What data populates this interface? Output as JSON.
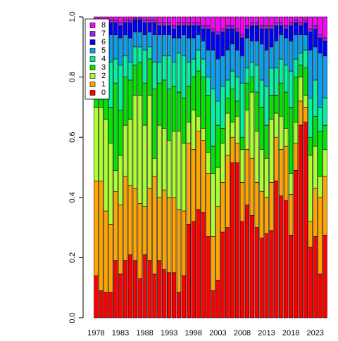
{
  "chart_data": {
    "type": "stacked_bar",
    "categories": [
      "1978",
      null,
      null,
      null,
      null,
      "1983",
      null,
      null,
      null,
      null,
      "1988",
      null,
      null,
      null,
      null,
      "1993",
      null,
      null,
      null,
      null,
      "1998",
      null,
      null,
      null,
      null,
      "2003",
      null,
      null,
      null,
      null,
      "2008",
      null,
      null,
      null,
      null,
      "2013",
      null,
      null,
      null,
      null,
      "2018",
      null,
      null,
      null,
      null,
      "2023",
      null,
      null
    ],
    "series": [
      {
        "name": "0",
        "color": "#FF0000",
        "values": [
          0.14,
          0.09,
          0.085,
          0.085,
          0.19,
          0.145,
          0.19,
          0.21,
          0.19,
          0.13,
          0.21,
          0.19,
          0.145,
          0.19,
          0.16,
          0.15,
          0.15,
          0.085,
          0.14,
          0.31,
          0.32,
          0.36,
          0.35,
          0.27,
          0.09,
          0.125,
          0.285,
          0.3,
          0.515,
          0.515,
          0.32,
          0.375,
          0.34,
          0.3,
          0.265,
          0.28,
          0.29,
          0.455,
          0.405,
          0.39,
          0.275,
          0.49,
          0.64,
          0.65,
          0.235,
          0.27,
          0.145,
          0.275
        ]
      },
      {
        "name": "1",
        "color": "#FFA500",
        "values": [
          0.315,
          0.365,
          0.27,
          0.225,
          0.23,
          0.23,
          0.28,
          0.23,
          0.24,
          0.25,
          0.16,
          0.24,
          0.325,
          0.21,
          0.265,
          0.25,
          0.25,
          0.275,
          0.215,
          0.27,
          0.24,
          0.26,
          0.24,
          0.21,
          0.18,
          0.245,
          0.165,
          0.24,
          0.085,
          0.065,
          0.13,
          0.185,
          0.19,
          0.15,
          0.155,
          0.12,
          0.16,
          0.145,
          0.155,
          0.18,
          0.135,
          0.09,
          0.08,
          0.05,
          0.085,
          0.16,
          0.255,
          0.195
        ]
      },
      {
        "name": "2",
        "color": "#ADFF2F",
        "values": [
          0.245,
          0.245,
          0.305,
          0.27,
          0.07,
          0.165,
          0.17,
          0.22,
          0.31,
          0.36,
          0.27,
          0.31,
          0.06,
          0.24,
          0.205,
          0.19,
          0.22,
          0.26,
          0.225,
          0.07,
          0.13,
          0.05,
          0.04,
          0.07,
          0.21,
          0.13,
          0.13,
          0.14,
          0.05,
          0.09,
          0.11,
          0.13,
          0.22,
          0.17,
          0.14,
          0.13,
          0.21,
          0.08,
          0.11,
          0.06,
          0.07,
          0.07,
          0.08,
          0.04,
          0.22,
          0.14,
          0.07,
          0.09
        ]
      },
      {
        "name": "3",
        "color": "#00E600",
        "values": [
          0.04,
          0.09,
          0.13,
          0.12,
          0.29,
          0.15,
          0.16,
          0.13,
          0.1,
          0.11,
          0.14,
          0.12,
          0.23,
          0.14,
          0.16,
          0.17,
          0.15,
          0.13,
          0.15,
          0.12,
          0.11,
          0.15,
          0.17,
          0.19,
          0.09,
          0.14,
          0.05,
          0.05,
          0.11,
          0.05,
          0.04,
          0.09,
          0.05,
          0.13,
          0.14,
          0.11,
          0.08,
          0.06,
          0.11,
          0.12,
          0.22,
          0.15,
          0.04,
          0.09,
          0.06,
          0.1,
          0.15,
          0.08
        ]
      },
      {
        "name": "4",
        "color": "#00F5A0",
        "values": [
          0.12,
          0.07,
          0.11,
          0.15,
          0.08,
          0.15,
          0.07,
          0.06,
          0.06,
          0.05,
          0.11,
          0.04,
          0.09,
          0.07,
          0.08,
          0.11,
          0.08,
          0.13,
          0.14,
          0.08,
          0.06,
          0.07,
          0.06,
          0.06,
          0.19,
          0.08,
          0.14,
          0.06,
          0.06,
          0.08,
          0.18,
          0.05,
          0.05,
          0.09,
          0.09,
          0.13,
          0.09,
          0.09,
          0.08,
          0.09,
          0.12,
          0.06,
          0.04,
          0.06,
          0.13,
          0.12,
          0.08,
          0.09
        ]
      },
      {
        "name": "5",
        "color": "#0AA0F0",
        "values": [
          0.07,
          0.07,
          0.04,
          0.09,
          0.08,
          0.09,
          0.07,
          0.08,
          0.05,
          0.05,
          0.05,
          0.05,
          0.09,
          0.09,
          0.07,
          0.07,
          0.08,
          0.05,
          0.07,
          0.08,
          0.07,
          0.05,
          0.06,
          0.09,
          0.13,
          0.14,
          0.1,
          0.1,
          0.09,
          0.09,
          0.09,
          0.1,
          0.07,
          0.08,
          0.12,
          0.12,
          0.07,
          0.09,
          0.08,
          0.09,
          0.1,
          0.08,
          0.06,
          0.05,
          0.16,
          0.11,
          0.18,
          0.14
        ]
      },
      {
        "name": "6",
        "color": "#0000FF",
        "values": [
          0.04,
          0.05,
          0.04,
          0.04,
          0.04,
          0.04,
          0.04,
          0.05,
          0.04,
          0.04,
          0.04,
          0.03,
          0.04,
          0.03,
          0.03,
          0.03,
          0.03,
          0.04,
          0.03,
          0.04,
          0.04,
          0.03,
          0.04,
          0.07,
          0.06,
          0.08,
          0.08,
          0.07,
          0.05,
          0.06,
          0.06,
          0.03,
          0.05,
          0.05,
          0.05,
          0.07,
          0.06,
          0.05,
          0.03,
          0.03,
          0.05,
          0.04,
          0.03,
          0.04,
          0.06,
          0.06,
          0.05,
          0.05
        ]
      },
      {
        "name": "7",
        "color": "#A020F0",
        "values": [
          0.01,
          0.01,
          0.01,
          0.01,
          0.01,
          0.01,
          0.01,
          0.01,
          0.005,
          0.005,
          0.01,
          0.01,
          0.01,
          0.01,
          0.01,
          0.01,
          0.01,
          0.01,
          0.01,
          0.01,
          0.01,
          0.01,
          0.01,
          0.01,
          0.01,
          0.01,
          0.01,
          0.01,
          0.01,
          0.01,
          0.01,
          0.01,
          0.01,
          0.01,
          0.01,
          0.01,
          0.01,
          0.01,
          0.01,
          0.01,
          0.01,
          0.01,
          0.01,
          0.01,
          0.01,
          0.01,
          0.01,
          0.01
        ]
      },
      {
        "name": "8",
        "color": "#FF00FF",
        "values": [
          0.02,
          0.01,
          0.01,
          0.01,
          0.01,
          0.02,
          0.01,
          0.01,
          0.005,
          0.005,
          0.01,
          0.01,
          0.01,
          0.02,
          0.02,
          0.02,
          0.03,
          0.02,
          0.02,
          0.02,
          0.02,
          0.02,
          0.03,
          0.03,
          0.04,
          0.05,
          0.04,
          0.03,
          0.03,
          0.04,
          0.06,
          0.03,
          0.02,
          0.02,
          0.03,
          0.03,
          0.03,
          0.02,
          0.02,
          0.03,
          0.02,
          0.01,
          0.02,
          0.01,
          0.04,
          0.03,
          0.06,
          0.07
        ]
      }
    ],
    "ylim": [
      0,
      1
    ],
    "yticks": [
      {
        "value": 0,
        "label": "0.0"
      },
      0.2,
      0.4,
      0.6,
      0.8,
      {
        "value": 1,
        "label": "1.0"
      }
    ],
    "legend": "top-left"
  }
}
